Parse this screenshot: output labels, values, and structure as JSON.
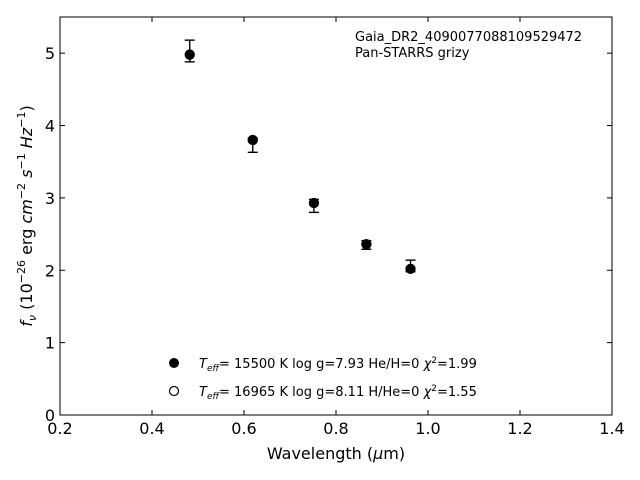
{
  "chart_data": {
    "type": "scatter",
    "title": "",
    "xlabel": "Wavelength (μm)",
    "ylabel": "f_ν (10^-26 erg cm^-2 s^-1 Hz^-1)",
    "xlim": [
      0.2,
      1.4
    ],
    "ylim": [
      0,
      5.5
    ],
    "xticks": [
      0.2,
      0.4,
      0.6,
      0.8,
      1.0,
      1.2,
      1.4
    ],
    "xtick_labels": [
      "0.2",
      "0.4",
      "0.6",
      "0.8",
      "1.0",
      "1.2",
      "1.4"
    ],
    "yticks": [
      0,
      1,
      2,
      3,
      4,
      5
    ],
    "ytick_labels": [
      "0",
      "1",
      "2",
      "3",
      "4",
      "5"
    ],
    "grid": false,
    "annotations": [
      "Gaia_DR2_4090077088109529472",
      "Pan-STARRS grizy"
    ],
    "observed": {
      "x": [
        0.482,
        0.619,
        0.752,
        0.866,
        0.962
      ],
      "y": [
        5.03,
        3.73,
        2.89,
        2.35,
        2.06
      ],
      "yerr": [
        0.15,
        0.1,
        0.09,
        0.06,
        0.08
      ]
    },
    "series": [
      {
        "marker": "filled-circle",
        "legend_label": "T_eff= 15500 K  log g=7.93  He/H=0  χ²=1.99",
        "x": [
          0.482,
          0.619,
          0.752,
          0.866,
          0.962
        ],
        "y": [
          4.98,
          3.8,
          2.93,
          2.36,
          2.02
        ]
      },
      {
        "marker": "open-circle",
        "legend_label": "T_eff= 16965 K  log g=8.11  H/He=0  χ²=1.55",
        "x": [
          0.482,
          0.619,
          0.752,
          0.866,
          0.962
        ],
        "y": [
          4.98,
          3.8,
          2.93,
          2.36,
          2.02
        ]
      }
    ],
    "legend": {
      "placement": "bottom-center",
      "entries": [
        {
          "teff": "= 15500 K  log g=7.93  He/H=0  ",
          "chi": "=1.99"
        },
        {
          "teff": "= 16965 K  log g=8.11  H/He=0  ",
          "chi": "=1.55"
        }
      ]
    }
  }
}
